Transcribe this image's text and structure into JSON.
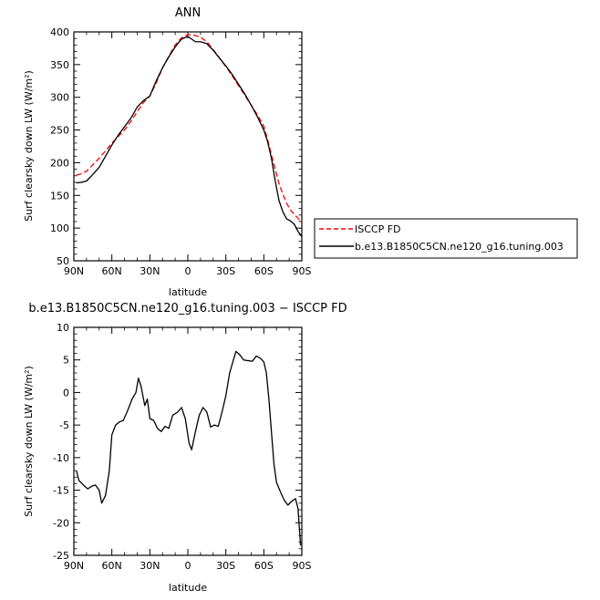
{
  "chart_data": [
    {
      "type": "line",
      "title": "ANN",
      "xlabel": "latitude",
      "ylabel": "Surf clearsky down LW (W/m²)",
      "xlim": [
        90,
        -90
      ],
      "ylim": [
        50,
        400
      ],
      "x_tick_labels": [
        "90N",
        "60N",
        "30N",
        "0",
        "30S",
        "60S",
        "90S"
      ],
      "x_tick_values": [
        90,
        60,
        30,
        0,
        -30,
        -60,
        -90
      ],
      "y_ticks": [
        50,
        100,
        150,
        200,
        250,
        300,
        350,
        400
      ],
      "legend_position": "right",
      "series": [
        {
          "name": "ISCCP FD",
          "color": "#ff0000",
          "dash": "dashed",
          "points": [
            [
              88,
              181
            ],
            [
              84,
              183
            ],
            [
              80,
              187
            ],
            [
              75,
              197
            ],
            [
              70,
              207
            ],
            [
              65,
              218
            ],
            [
              60,
              230
            ],
            [
              55,
              240
            ],
            [
              50,
              250
            ],
            [
              45,
              263
            ],
            [
              40,
              278
            ],
            [
              35,
              292
            ],
            [
              30,
              302
            ],
            [
              25,
              322
            ],
            [
              20,
              345
            ],
            [
              15,
              363
            ],
            [
              10,
              380
            ],
            [
              5,
              391
            ],
            [
              0,
              396
            ],
            [
              -5,
              395
            ],
            [
              -10,
              392
            ],
            [
              -15,
              385
            ],
            [
              -20,
              373
            ],
            [
              -25,
              360
            ],
            [
              -30,
              347
            ],
            [
              -35,
              333
            ],
            [
              -40,
              318
            ],
            [
              -45,
              303
            ],
            [
              -50,
              288
            ],
            [
              -55,
              273
            ],
            [
              -60,
              256
            ],
            [
              -63,
              235
            ],
            [
              -66,
              212
            ],
            [
              -69,
              190
            ],
            [
              -72,
              168
            ],
            [
              -75,
              152
            ],
            [
              -78,
              138
            ],
            [
              -81,
              128
            ],
            [
              -84,
              121
            ],
            [
              -87,
              115
            ],
            [
              -90,
              108
            ]
          ]
        },
        {
          "name": "b.e13.B1850C5CN.ne120_g16.tuning.003",
          "color": "#000000",
          "dash": "solid",
          "points": [
            [
              88,
              169
            ],
            [
              84,
              170
            ],
            [
              80,
              172
            ],
            [
              75,
              182
            ],
            [
              70,
              193
            ],
            [
              65,
              210
            ],
            [
              60,
              227
            ],
            [
              55,
              242
            ],
            [
              50,
              255
            ],
            [
              45,
              268
            ],
            [
              40,
              285
            ],
            [
              35,
              295
            ],
            [
              30,
              302
            ],
            [
              25,
              325
            ],
            [
              20,
              345
            ],
            [
              15,
              362
            ],
            [
              10,
              377
            ],
            [
              5,
              389
            ],
            [
              0,
              393
            ],
            [
              -3,
              389
            ],
            [
              -6,
              385
            ],
            [
              -10,
              385
            ],
            [
              -15,
              382
            ],
            [
              -20,
              372
            ],
            [
              -25,
              360
            ],
            [
              -30,
              348
            ],
            [
              -35,
              335
            ],
            [
              -40,
              320
            ],
            [
              -45,
              305
            ],
            [
              -50,
              288
            ],
            [
              -55,
              270
            ],
            [
              -60,
              250
            ],
            [
              -63,
              232
            ],
            [
              -66,
              207
            ],
            [
              -69,
              172
            ],
            [
              -72,
              142
            ],
            [
              -75,
              125
            ],
            [
              -78,
              114
            ],
            [
              -81,
              111
            ],
            [
              -84,
              106
            ],
            [
              -87,
              95
            ],
            [
              -90,
              87
            ]
          ]
        }
      ]
    },
    {
      "type": "line",
      "title": "b.e13.B1850C5CN.ne120_g16.tuning.003 − ISCCP FD",
      "xlabel": "latitude",
      "ylabel": "Surf clearsky down LW (W/m²)",
      "xlim": [
        90,
        -90
      ],
      "ylim": [
        -25,
        10
      ],
      "x_tick_labels": [
        "90N",
        "60N",
        "30N",
        "0",
        "30S",
        "60S",
        "90S"
      ],
      "x_tick_values": [
        90,
        60,
        30,
        0,
        -30,
        -60,
        -90
      ],
      "y_ticks": [
        -25,
        -20,
        -15,
        -10,
        -5,
        0,
        5,
        10
      ],
      "series": [
        {
          "color": "#000000",
          "dash": "solid",
          "points": [
            [
              88,
              -12
            ],
            [
              86,
              -13.5
            ],
            [
              82,
              -14.3
            ],
            [
              79,
              -14.8
            ],
            [
              76,
              -14.4
            ],
            [
              73,
              -14.2
            ],
            [
              70,
              -15
            ],
            [
              68,
              -17
            ],
            [
              65,
              -15.8
            ],
            [
              62,
              -12
            ],
            [
              60,
              -6.5
            ],
            [
              57,
              -5
            ],
            [
              54,
              -4.5
            ],
            [
              51,
              -4.3
            ],
            [
              48,
              -3
            ],
            [
              44,
              -1
            ],
            [
              41,
              0
            ],
            [
              39,
              2.2
            ],
            [
              37,
              1
            ],
            [
              34,
              -2
            ],
            [
              32,
              -1
            ],
            [
              30,
              -4
            ],
            [
              27,
              -4.3
            ],
            [
              24,
              -5.5
            ],
            [
              21,
              -6
            ],
            [
              18,
              -5.2
            ],
            [
              15,
              -5.5
            ],
            [
              12,
              -3.5
            ],
            [
              8,
              -3
            ],
            [
              5,
              -2.3
            ],
            [
              2,
              -4
            ],
            [
              -1,
              -7.8
            ],
            [
              -3,
              -8.8
            ],
            [
              -6,
              -6
            ],
            [
              -9,
              -3.5
            ],
            [
              -12,
              -2.3
            ],
            [
              -15,
              -3
            ],
            [
              -18,
              -5.3
            ],
            [
              -21,
              -5
            ],
            [
              -24,
              -5.2
            ],
            [
              -27,
              -3
            ],
            [
              -30,
              -0.5
            ],
            [
              -33,
              3
            ],
            [
              -36,
              5
            ],
            [
              -38,
              6.3
            ],
            [
              -41,
              5.8
            ],
            [
              -44,
              5
            ],
            [
              -47,
              4.9
            ],
            [
              -51,
              4.8
            ],
            [
              -54,
              5.6
            ],
            [
              -57,
              5.3
            ],
            [
              -60,
              4.7
            ],
            [
              -62,
              3
            ],
            [
              -64,
              -1
            ],
            [
              -66,
              -6
            ],
            [
              -68,
              -11
            ],
            [
              -70,
              -13.8
            ],
            [
              -73,
              -15.2
            ],
            [
              -76,
              -16.5
            ],
            [
              -79,
              -17.3
            ],
            [
              -82,
              -16.7
            ],
            [
              -85,
              -16.3
            ],
            [
              -87,
              -17.8
            ],
            [
              -89,
              -23.5
            ]
          ]
        }
      ]
    }
  ]
}
